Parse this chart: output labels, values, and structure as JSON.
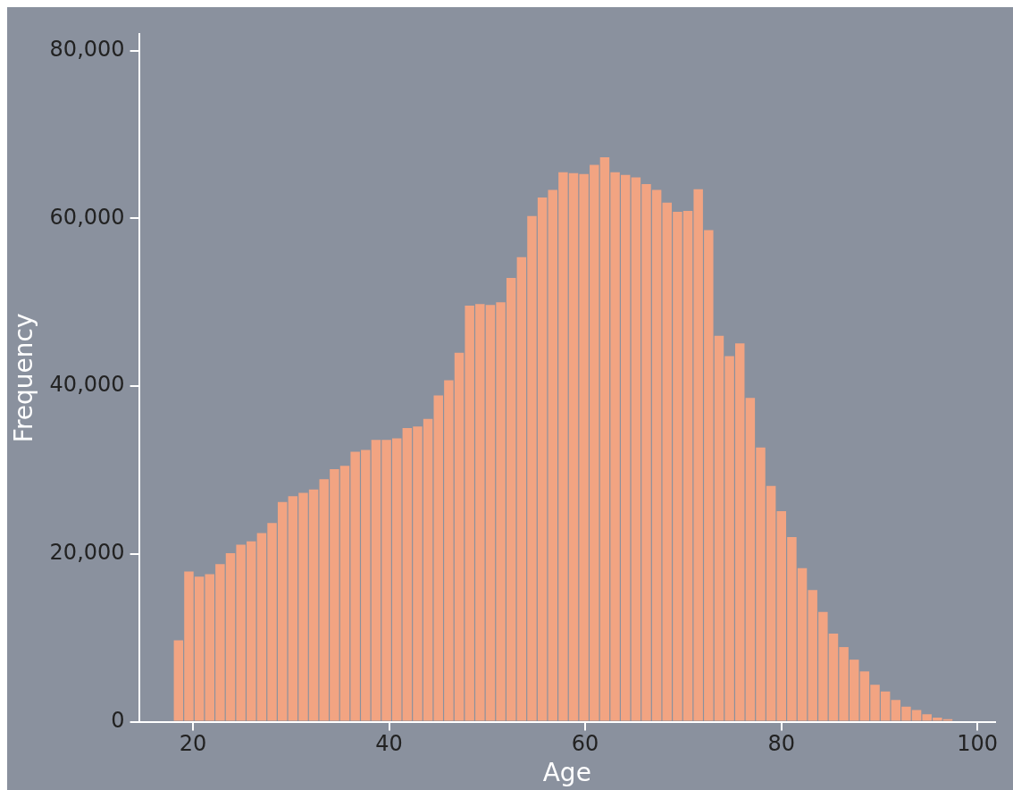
{
  "chart_data": {
    "type": "histogram",
    "xlabel": "Age",
    "ylabel": "Frequency",
    "color": "#f2a482",
    "grid": false,
    "legend": false,
    "bins": [
      18,
      19.06,
      20.12,
      21.18,
      22.24,
      23.3,
      24.36,
      25.42,
      26.48,
      27.54,
      28.6,
      29.66,
      30.72,
      31.78,
      32.84,
      33.9,
      34.96,
      36.02,
      37.08,
      38.14,
      39.2,
      40.26,
      41.32,
      42.38,
      43.44,
      44.5,
      45.56,
      46.62,
      47.68,
      48.74,
      49.8,
      50.86,
      51.92,
      52.98,
      54.04,
      55.1,
      56.16,
      57.22,
      58.28,
      59.34,
      60.4,
      61.46,
      62.52,
      63.58,
      64.64,
      65.7,
      66.76,
      67.82,
      68.88,
      69.94,
      71,
      72.06,
      73.12,
      74.18,
      75.24,
      76.3,
      77.36,
      78.42,
      79.48,
      80.54,
      81.6,
      82.66,
      83.72,
      84.78,
      85.84,
      86.9,
      87.96,
      89.02,
      90.08,
      91.14,
      92.2,
      93.26,
      94.32,
      95.38,
      96.44,
      97.5
    ],
    "values": [
      9700,
      17900,
      17300,
      17600,
      18800,
      20100,
      21100,
      21500,
      22500,
      23700,
      26200,
      26900,
      27300,
      27700,
      28900,
      30100,
      30500,
      32200,
      32400,
      33600,
      33600,
      33800,
      35000,
      35200,
      36100,
      38900,
      40700,
      44000,
      49600,
      49800,
      49700,
      50000,
      52900,
      55400,
      60300,
      62500,
      63400,
      65500,
      65400,
      65300,
      66400,
      67300,
      65500,
      65200,
      64900,
      64100,
      63400,
      61900,
      60800,
      60900,
      63500,
      58600,
      46000,
      43600,
      45100,
      38600,
      32700,
      28100,
      25100,
      22000,
      18300,
      15700,
      13100,
      10500,
      8900,
      7400,
      6000,
      4400,
      3600,
      2600,
      1800,
      1400,
      900,
      500,
      300
    ],
    "xlim": [
      14.5,
      101.8
    ],
    "xticks": [
      20,
      40,
      60,
      80,
      100
    ],
    "ylim": [
      0,
      82000
    ],
    "yticks": [
      {
        "value": 0,
        "label": "0"
      },
      {
        "value": 20000,
        "label": "20,000"
      },
      {
        "value": 40000,
        "label": "40,000"
      },
      {
        "value": 60000,
        "label": "60,000"
      },
      {
        "value": 80000,
        "label": "80,000"
      }
    ]
  }
}
